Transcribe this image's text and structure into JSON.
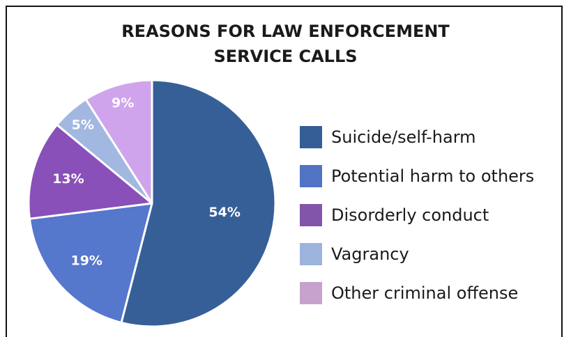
{
  "chart_data": {
    "type": "pie",
    "title": "REASONS FOR LAW ENFORCEMENT\nSERVICE CALLS",
    "slices": [
      {
        "label": "Suicide/self-harm",
        "value": 54,
        "display": "54%",
        "color": "#365f97"
      },
      {
        "label": "Potential harm to others",
        "value": 19,
        "display": "19%",
        "color": "#5577cc"
      },
      {
        "label": "Disorderly conduct",
        "value": 13,
        "display": "13%",
        "color": "#8850b8"
      },
      {
        "label": "Vagrancy",
        "value": 5,
        "display": "5%",
        "color": "#a3b8e0"
      },
      {
        "label": "Other criminal offense",
        "value": 9,
        "display": "9%",
        "color": "#d0a4ec"
      }
    ],
    "legend_position": "right",
    "legend_colors": [
      "#345d96",
      "#5273c4",
      "#8254aa",
      "#9cb4dc",
      "#c7a2cd"
    ],
    "start_angle": "12 o'clock",
    "direction": "clockwise"
  }
}
